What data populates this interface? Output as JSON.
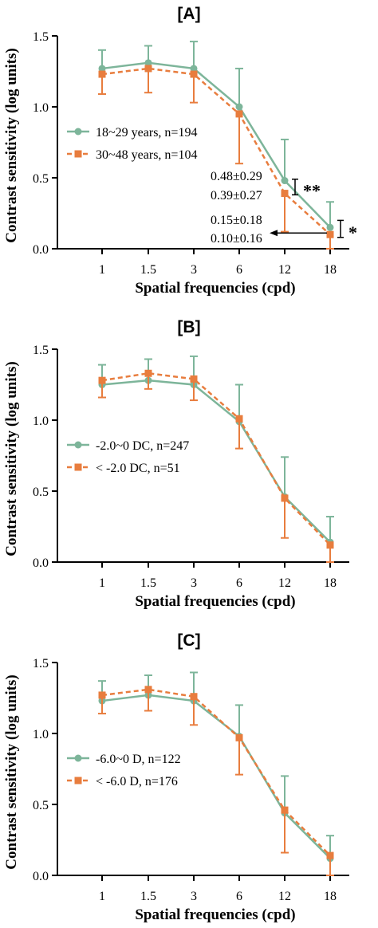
{
  "colors": {
    "green": "#7db59a",
    "orange": "#e87d3e",
    "axis": "#000000"
  },
  "chart_data": [
    {
      "type": "line",
      "title": "[A]",
      "xlabel": "Spatial frequencies (cpd)",
      "ylabel": "Contrast sensitivity (log units)",
      "categories": [
        "1",
        "1.5",
        "3",
        "6",
        "12",
        "18"
      ],
      "ylim": [
        0,
        1.5
      ],
      "yticks": [
        "0.0",
        "0.5",
        "1.0",
        "1.5"
      ],
      "legend_position": "left",
      "series": [
        {
          "name": "18~29 years, n=194",
          "color": "#7db59a",
          "style": "solid",
          "marker": "circle",
          "values": [
            1.27,
            1.31,
            1.27,
            1.0,
            0.48,
            0.15
          ],
          "err_upper": [
            1.4,
            1.43,
            1.46,
            1.27,
            0.77,
            0.33
          ],
          "err_lower": [
            1.27,
            1.31,
            1.27,
            1.0,
            0.48,
            0.15
          ]
        },
        {
          "name": "30~48 years, n=104",
          "color": "#e87d3e",
          "style": "dashed",
          "marker": "square",
          "values": [
            1.23,
            1.27,
            1.23,
            0.95,
            0.39,
            0.1
          ],
          "err_upper": [
            1.23,
            1.27,
            1.23,
            0.95,
            0.39,
            0.1
          ],
          "err_lower": [
            1.09,
            1.1,
            1.03,
            0.6,
            0.12,
            0.0
          ]
        }
      ],
      "annotations": [
        {
          "text": "0.48±0.29",
          "x": "12",
          "y": 0.48
        },
        {
          "text": "0.39±0.27",
          "x": "12",
          "y": 0.39
        },
        {
          "text": "0.15±0.18",
          "x": "18",
          "y": 0.15
        },
        {
          "text": "0.10±0.16",
          "x": "18",
          "y": 0.1
        }
      ],
      "significance": [
        {
          "label": "**",
          "x": "12",
          "y_top": 0.49,
          "y_bottom": 0.38
        },
        {
          "label": "*",
          "x": "18",
          "y_top": 0.2,
          "y_bottom": 0.08
        }
      ],
      "arrow": {
        "from_x": "18",
        "to_x": "12",
        "y": 0.1
      }
    },
    {
      "type": "line",
      "title": "[B]",
      "xlabel": "Spatial frequencies (cpd)",
      "ylabel": "Contrast sensitivity (log units)",
      "categories": [
        "1",
        "1.5",
        "3",
        "6",
        "12",
        "18"
      ],
      "ylim": [
        0,
        1.5
      ],
      "yticks": [
        "0.0",
        "0.5",
        "1.0",
        "1.5"
      ],
      "legend_position": "left",
      "series": [
        {
          "name": "-2.0~0 DC, n=247",
          "color": "#7db59a",
          "style": "solid",
          "marker": "circle",
          "values": [
            1.25,
            1.28,
            1.25,
            0.99,
            0.46,
            0.14
          ],
          "err_upper": [
            1.39,
            1.43,
            1.45,
            1.25,
            0.74,
            0.32
          ],
          "err_lower": [
            1.25,
            1.28,
            1.25,
            0.99,
            0.46,
            0.14
          ]
        },
        {
          "name": "< -2.0 DC, n=51",
          "color": "#e87d3e",
          "style": "dashed",
          "marker": "square",
          "values": [
            1.28,
            1.33,
            1.29,
            1.01,
            0.45,
            0.12
          ],
          "err_upper": [
            1.28,
            1.33,
            1.29,
            1.01,
            0.45,
            0.12
          ],
          "err_lower": [
            1.16,
            1.22,
            1.14,
            0.8,
            0.17,
            0.0
          ]
        }
      ]
    },
    {
      "type": "line",
      "title": "[C]",
      "xlabel": "Spatial frequencies (cpd)",
      "ylabel": "Contrast sensitivity (log units)",
      "categories": [
        "1",
        "1.5",
        "3",
        "6",
        "12",
        "18"
      ],
      "ylim": [
        0,
        1.5
      ],
      "yticks": [
        "0.0",
        "0.5",
        "1.0",
        "1.5"
      ],
      "legend_position": "left",
      "series": [
        {
          "name": "-6.0~0 D, n=122",
          "color": "#7db59a",
          "style": "solid",
          "marker": "circle",
          "values": [
            1.23,
            1.27,
            1.23,
            0.98,
            0.44,
            0.12
          ],
          "err_upper": [
            1.37,
            1.41,
            1.43,
            1.2,
            0.7,
            0.28
          ],
          "err_lower": [
            1.23,
            1.27,
            1.23,
            0.98,
            0.44,
            0.12
          ]
        },
        {
          "name": "< -6.0 D, n=176",
          "color": "#e87d3e",
          "style": "dashed",
          "marker": "square",
          "values": [
            1.27,
            1.31,
            1.26,
            0.97,
            0.46,
            0.14
          ],
          "err_upper": [
            1.27,
            1.31,
            1.26,
            0.97,
            0.46,
            0.14
          ],
          "err_lower": [
            1.14,
            1.16,
            1.06,
            0.71,
            0.16,
            0.0
          ]
        }
      ]
    }
  ]
}
